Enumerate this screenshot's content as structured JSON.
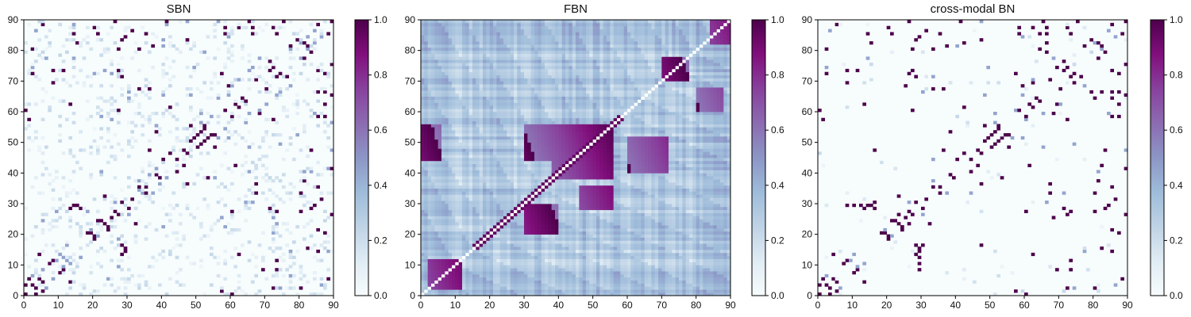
{
  "chart_data": [
    {
      "type": "heatmap",
      "title": "SBN",
      "xlim": [
        0,
        90
      ],
      "ylim": [
        0,
        90
      ],
      "x_ticks": [
        "0",
        "10",
        "20",
        "30",
        "40",
        "50",
        "60",
        "70",
        "80",
        "90"
      ],
      "y_ticks": [
        "0",
        "10",
        "20",
        "30",
        "40",
        "50",
        "60",
        "70",
        "80",
        "90"
      ],
      "colorbar": {
        "range": [
          0,
          1
        ],
        "ticks": [
          "0.0",
          "0.2",
          "0.4",
          "0.6",
          "0.8",
          "1.0"
        ]
      },
      "colormap": "BuPu",
      "density": "sparse",
      "strong_cells": [
        [
          20,
          87
        ],
        [
          27,
          80
        ],
        [
          33,
          80
        ],
        [
          47,
          83
        ],
        [
          58,
          87
        ],
        [
          58,
          85
        ],
        [
          66,
          87
        ],
        [
          66,
          85
        ],
        [
          88,
          85
        ],
        [
          89,
          89
        ],
        [
          81,
          82
        ],
        [
          83,
          79
        ],
        [
          85,
          73
        ],
        [
          90,
          75
        ],
        [
          81,
          77
        ],
        [
          87,
          72
        ],
        [
          74,
          72
        ],
        [
          76,
          71
        ],
        [
          71,
          73
        ],
        [
          70,
          67
        ],
        [
          63,
          64
        ],
        [
          61,
          62
        ],
        [
          60,
          58
        ],
        [
          72,
          57
        ],
        [
          68,
          59
        ],
        [
          36,
          67
        ],
        [
          33,
          67
        ],
        [
          28,
          71
        ],
        [
          8,
          73
        ],
        [
          11,
          73
        ],
        [
          2,
          72
        ],
        [
          0,
          60
        ],
        [
          1,
          57
        ],
        [
          36,
          47
        ],
        [
          46,
          42
        ],
        [
          44,
          44
        ],
        [
          47,
          46
        ],
        [
          48,
          50
        ],
        [
          50,
          52
        ],
        [
          51,
          49
        ],
        [
          53,
          51
        ],
        [
          54,
          52
        ],
        [
          52,
          55
        ],
        [
          55,
          48
        ],
        [
          44,
          40
        ],
        [
          39,
          38
        ],
        [
          35,
          35
        ],
        [
          33,
          35
        ],
        [
          31,
          31
        ],
        [
          28,
          30
        ],
        [
          26,
          27
        ],
        [
          25,
          25
        ],
        [
          23,
          23
        ],
        [
          22,
          24
        ],
        [
          21,
          24
        ],
        [
          20,
          19
        ],
        [
          18,
          20
        ],
        [
          16,
          28
        ],
        [
          15,
          29
        ],
        [
          14,
          29
        ],
        [
          13,
          28
        ],
        [
          11,
          8
        ],
        [
          10,
          7
        ],
        [
          5,
          4
        ],
        [
          4,
          13
        ],
        [
          2,
          3
        ],
        [
          1,
          5
        ],
        [
          3,
          0
        ],
        [
          0,
          0
        ],
        [
          62,
          13
        ],
        [
          81,
          37
        ],
        [
          89,
          41
        ],
        [
          88,
          5
        ],
        [
          80,
          2
        ],
        [
          85,
          14
        ],
        [
          85,
          21
        ],
        [
          84,
          29
        ],
        [
          85,
          35
        ],
        [
          82,
          15
        ],
        [
          90,
          65
        ],
        [
          87,
          62
        ],
        [
          69,
          8
        ],
        [
          90,
          26
        ],
        [
          42,
          61
        ],
        [
          38,
          53
        ],
        [
          32,
          23
        ],
        [
          60,
          27
        ],
        [
          73,
          27
        ],
        [
          86,
          31
        ],
        [
          83,
          28
        ]
      ],
      "medium_cells": [
        [
          6,
          2
        ],
        [
          8,
          5
        ],
        [
          9,
          11
        ],
        [
          11,
          12
        ],
        [
          13,
          10
        ],
        [
          16,
          12
        ],
        [
          21,
          19
        ],
        [
          27,
          18
        ],
        [
          30,
          26
        ],
        [
          34,
          33
        ],
        [
          37,
          33
        ],
        [
          39,
          36
        ],
        [
          41,
          38
        ],
        [
          56,
          51
        ],
        [
          58,
          54
        ],
        [
          59,
          51
        ],
        [
          64,
          56
        ],
        [
          65,
          59
        ],
        [
          68,
          60
        ],
        [
          70,
          62
        ],
        [
          73,
          65
        ],
        [
          74,
          66
        ],
        [
          77,
          68
        ],
        [
          80,
          77
        ],
        [
          82,
          80
        ],
        [
          84,
          82
        ],
        [
          86,
          84
        ],
        [
          24,
          5
        ],
        [
          27,
          9
        ],
        [
          22,
          40
        ],
        [
          38,
          55
        ],
        [
          48,
          65
        ],
        [
          58,
          22
        ],
        [
          66,
          30
        ],
        [
          64,
          30
        ],
        [
          65,
          40
        ],
        [
          74,
          49
        ],
        [
          79,
          52
        ],
        [
          83,
          40
        ],
        [
          88,
          41
        ],
        [
          89,
          47
        ],
        [
          89,
          56
        ],
        [
          73,
          23
        ],
        [
          25,
          57
        ],
        [
          25,
          72
        ],
        [
          20,
          72
        ],
        [
          6,
          77
        ],
        [
          3,
          86
        ],
        [
          14,
          88
        ],
        [
          40,
          81
        ],
        [
          59,
          84
        ],
        [
          77,
          14
        ],
        [
          74,
          2
        ]
      ],
      "faint_density": 0.12
    },
    {
      "type": "heatmap",
      "title": "FBN",
      "xlim": [
        0,
        90
      ],
      "ylim": [
        0,
        90
      ],
      "x_ticks": [
        "0",
        "10",
        "20",
        "30",
        "40",
        "50",
        "60",
        "70",
        "80",
        "90"
      ],
      "y_ticks": [
        "0",
        "10",
        "20",
        "30",
        "40",
        "50",
        "60",
        "70",
        "80",
        "90"
      ],
      "colorbar": {
        "range": [
          0,
          1
        ],
        "ticks": [
          "0.0",
          "0.2",
          "0.4",
          "0.6",
          "0.8",
          "1.0"
        ]
      },
      "colormap": "BuPu",
      "density": "dense",
      "diagonal": "white",
      "hot_blocks": [
        {
          "x": [
            38,
            56
          ],
          "y": [
            38,
            56
          ]
        },
        {
          "x": [
            30,
            38
          ],
          "y": [
            44,
            56
          ]
        },
        {
          "x": [
            46,
            56
          ],
          "y": [
            28,
            36
          ]
        },
        {
          "x": [
            60,
            72
          ],
          "y": [
            40,
            52
          ]
        },
        {
          "x": [
            2,
            12
          ],
          "y": [
            2,
            12
          ]
        },
        {
          "x": [
            70,
            78
          ],
          "y": [
            70,
            78
          ]
        },
        {
          "x": [
            84,
            90
          ],
          "y": [
            82,
            90
          ]
        },
        {
          "x": [
            0,
            6
          ],
          "y": [
            44,
            56
          ]
        },
        {
          "x": [
            80,
            88
          ],
          "y": [
            60,
            68
          ]
        },
        {
          "x": [
            30,
            40
          ],
          "y": [
            20,
            30
          ]
        }
      ]
    },
    {
      "type": "heatmap",
      "title": "cross-modal BN",
      "xlim": [
        0,
        90
      ],
      "ylim": [
        0,
        90
      ],
      "x_ticks": [
        "0",
        "10",
        "20",
        "30",
        "40",
        "50",
        "60",
        "70",
        "80",
        "90"
      ],
      "y_ticks": [
        "0",
        "10",
        "20",
        "30",
        "40",
        "50",
        "60",
        "70",
        "80",
        "90"
      ],
      "colorbar": {
        "range": [
          0,
          1
        ],
        "ticks": [
          "0.0",
          "0.2",
          "0.4",
          "0.6",
          "0.8",
          "1.0"
        ]
      },
      "colormap": "BuPu",
      "density": "sparse",
      "strong_cells": [
        [
          20,
          87
        ],
        [
          27,
          80
        ],
        [
          33,
          80
        ],
        [
          47,
          83
        ],
        [
          58,
          87
        ],
        [
          58,
          85
        ],
        [
          66,
          87
        ],
        [
          66,
          85
        ],
        [
          88,
          85
        ],
        [
          89,
          89
        ],
        [
          81,
          82
        ],
        [
          83,
          79
        ],
        [
          85,
          73
        ],
        [
          90,
          75
        ],
        [
          81,
          77
        ],
        [
          87,
          72
        ],
        [
          74,
          72
        ],
        [
          76,
          71
        ],
        [
          71,
          73
        ],
        [
          70,
          67
        ],
        [
          63,
          64
        ],
        [
          61,
          62
        ],
        [
          60,
          58
        ],
        [
          72,
          57
        ],
        [
          68,
          59
        ],
        [
          36,
          67
        ],
        [
          33,
          67
        ],
        [
          28,
          71
        ],
        [
          8,
          73
        ],
        [
          11,
          73
        ],
        [
          2,
          72
        ],
        [
          0,
          60
        ],
        [
          1,
          57
        ],
        [
          36,
          47
        ],
        [
          46,
          42
        ],
        [
          44,
          44
        ],
        [
          47,
          46
        ],
        [
          48,
          50
        ],
        [
          50,
          52
        ],
        [
          51,
          49
        ],
        [
          53,
          51
        ],
        [
          54,
          52
        ],
        [
          52,
          55
        ],
        [
          55,
          48
        ],
        [
          44,
          40
        ],
        [
          39,
          38
        ],
        [
          35,
          35
        ],
        [
          33,
          35
        ],
        [
          31,
          31
        ],
        [
          28,
          30
        ],
        [
          26,
          27
        ],
        [
          25,
          25
        ],
        [
          23,
          23
        ],
        [
          22,
          24
        ],
        [
          21,
          24
        ],
        [
          20,
          19
        ],
        [
          18,
          20
        ],
        [
          16,
          28
        ],
        [
          15,
          29
        ],
        [
          14,
          29
        ],
        [
          13,
          28
        ],
        [
          11,
          8
        ],
        [
          10,
          7
        ],
        [
          5,
          4
        ],
        [
          4,
          13
        ],
        [
          2,
          3
        ],
        [
          1,
          5
        ],
        [
          3,
          0
        ],
        [
          0,
          0
        ],
        [
          62,
          13
        ],
        [
          81,
          37
        ],
        [
          89,
          41
        ],
        [
          88,
          5
        ],
        [
          80,
          2
        ],
        [
          85,
          14
        ],
        [
          85,
          21
        ],
        [
          84,
          29
        ],
        [
          85,
          35
        ],
        [
          82,
          15
        ],
        [
          90,
          65
        ],
        [
          87,
          62
        ],
        [
          69,
          8
        ],
        [
          90,
          26
        ],
        [
          42,
          61
        ],
        [
          38,
          53
        ],
        [
          32,
          23
        ],
        [
          60,
          27
        ],
        [
          73,
          27
        ],
        [
          86,
          31
        ],
        [
          83,
          28
        ],
        [
          29,
          12
        ],
        [
          29,
          10
        ],
        [
          29,
          8
        ],
        [
          29,
          14
        ],
        [
          30,
          16
        ],
        [
          26,
          23
        ],
        [
          16,
          47
        ],
        [
          73,
          85
        ],
        [
          64,
          80
        ],
        [
          66,
          82
        ],
        [
          74,
          69
        ],
        [
          79,
          66
        ],
        [
          85,
          64
        ],
        [
          69,
          62
        ],
        [
          68,
          25
        ],
        [
          72,
          26
        ],
        [
          82,
          42
        ]
      ],
      "medium_cells": [
        [
          6,
          2
        ],
        [
          9,
          11
        ],
        [
          13,
          10
        ],
        [
          21,
          19
        ],
        [
          30,
          26
        ],
        [
          37,
          33
        ],
        [
          56,
          51
        ],
        [
          59,
          51
        ],
        [
          65,
          59
        ],
        [
          70,
          62
        ],
        [
          77,
          68
        ],
        [
          82,
          80
        ],
        [
          86,
          84
        ],
        [
          48,
          65
        ],
        [
          66,
          30
        ],
        [
          74,
          49
        ],
        [
          89,
          47
        ],
        [
          3,
          86
        ],
        [
          40,
          81
        ],
        [
          59,
          84
        ],
        [
          77,
          14
        ],
        [
          74,
          2
        ],
        [
          57,
          60
        ],
        [
          44,
          33
        ],
        [
          71,
          33
        ]
      ],
      "faint_density": 0.01
    }
  ]
}
